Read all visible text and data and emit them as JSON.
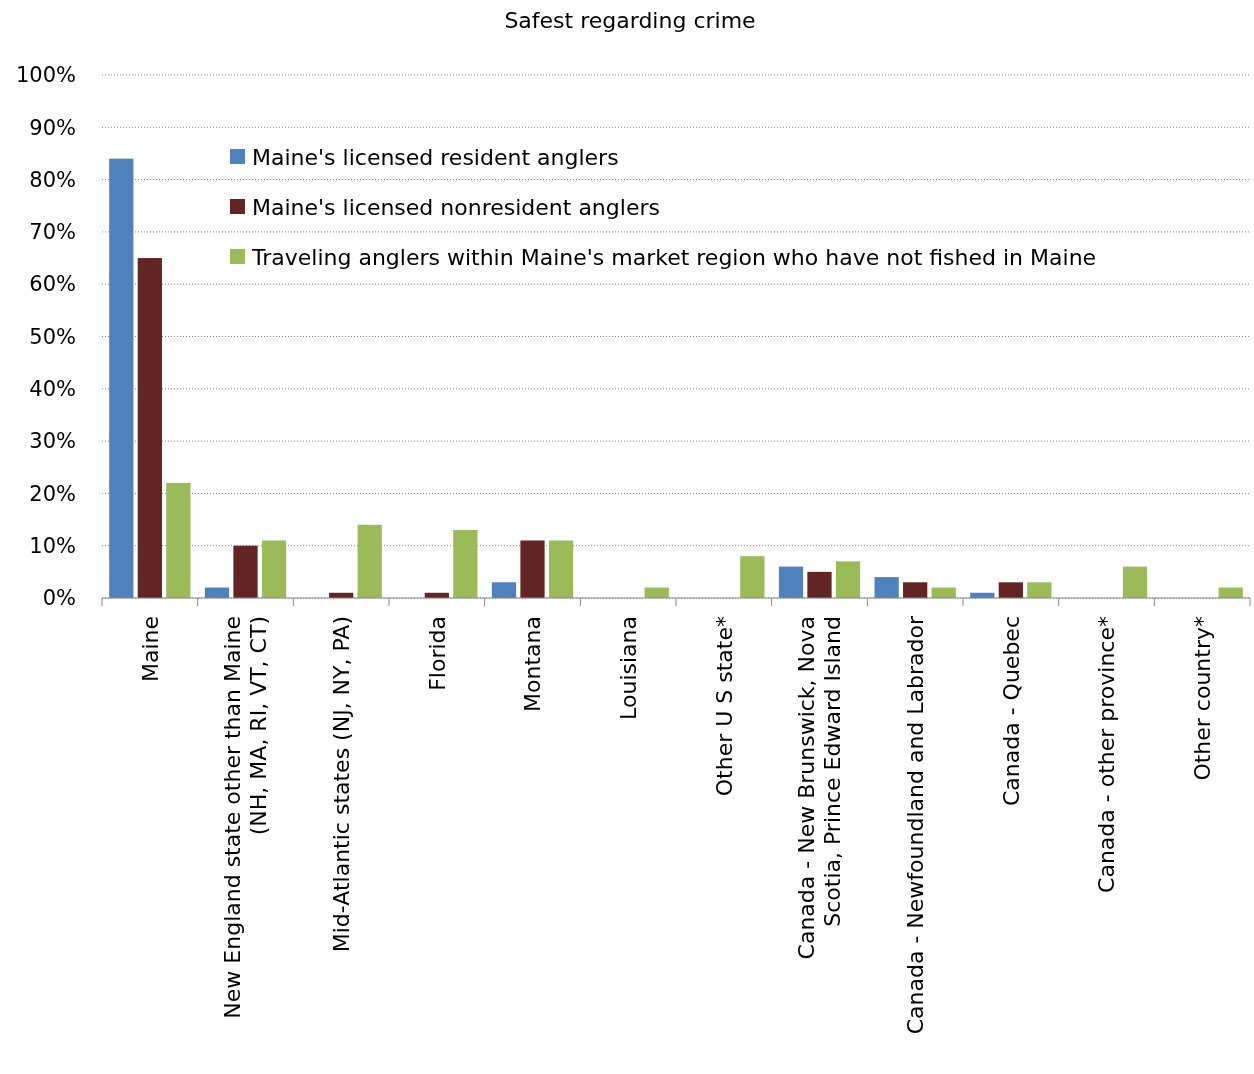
{
  "chart_data": {
    "type": "bar",
    "title": "Safest regarding crime",
    "categories": [
      "Maine",
      "New England state other than Maine (NH, MA, RI, VT, CT)",
      "Mid-Atlantic states (NJ, NY, PA)",
      "Florida",
      "Montana",
      "Louisiana",
      "Other U S state*",
      "Canada - New Brunswick, Nova Scotia, Prince Edward Island",
      "Canada - Newfoundland and Labrador",
      "Canada - Quebec",
      "Canada - other province*",
      "Other country*"
    ],
    "series": [
      {
        "name": "Maine's licensed resident anglers",
        "color": "#4f81bd",
        "values": [
          84,
          2,
          0,
          0,
          3,
          0,
          0,
          6,
          4,
          1,
          0,
          0
        ]
      },
      {
        "name": "Maine's licensed nonresident anglers",
        "color": "#632523",
        "values": [
          65,
          10,
          1,
          1,
          11,
          0,
          0,
          5,
          3,
          3,
          0,
          0
        ]
      },
      {
        "name": "Traveling anglers within Maine's market region who have not fished in Maine",
        "color": "#9bbb59",
        "values": [
          22,
          11,
          14,
          13,
          11,
          2,
          8,
          7,
          2,
          3,
          6,
          2
        ]
      }
    ],
    "ylim": [
      0,
      100
    ],
    "yticks": [
      {
        "value": 0,
        "label": "0%"
      },
      {
        "value": 10,
        "label": "10%"
      },
      {
        "value": 20,
        "label": "20%"
      },
      {
        "value": 30,
        "label": "30%"
      },
      {
        "value": 40,
        "label": "40%"
      },
      {
        "value": 50,
        "label": "50%"
      },
      {
        "value": 60,
        "label": "60%"
      },
      {
        "value": 70,
        "label": "70%"
      },
      {
        "value": 80,
        "label": "80%"
      },
      {
        "value": 90,
        "label": "90%"
      },
      {
        "value": 100,
        "label": "100%"
      }
    ],
    "grid": "y",
    "legend": "top"
  }
}
